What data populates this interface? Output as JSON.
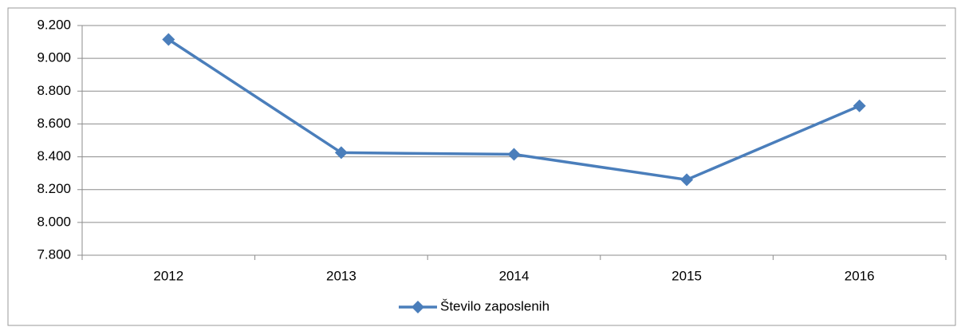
{
  "chart_data": {
    "type": "line",
    "categories": [
      "2012",
      "2013",
      "2014",
      "2015",
      "2016"
    ],
    "series": [
      {
        "name": "Število zaposlenih",
        "color": "#4a7ebb",
        "values": [
          9115,
          8425,
          8415,
          8260,
          8710
        ]
      }
    ],
    "ylim": [
      7800,
      9200
    ],
    "yticks": [
      {
        "value": 7800,
        "label": "7.800"
      },
      {
        "value": 8000,
        "label": "8.000"
      },
      {
        "value": 8200,
        "label": "8.200"
      },
      {
        "value": 8400,
        "label": "8.400"
      },
      {
        "value": 8600,
        "label": "8.600"
      },
      {
        "value": 8800,
        "label": "8.800"
      },
      {
        "value": 9000,
        "label": "9.000"
      },
      {
        "value": 9200,
        "label": "9.200"
      }
    ],
    "grid": true,
    "legend": "bottom"
  }
}
